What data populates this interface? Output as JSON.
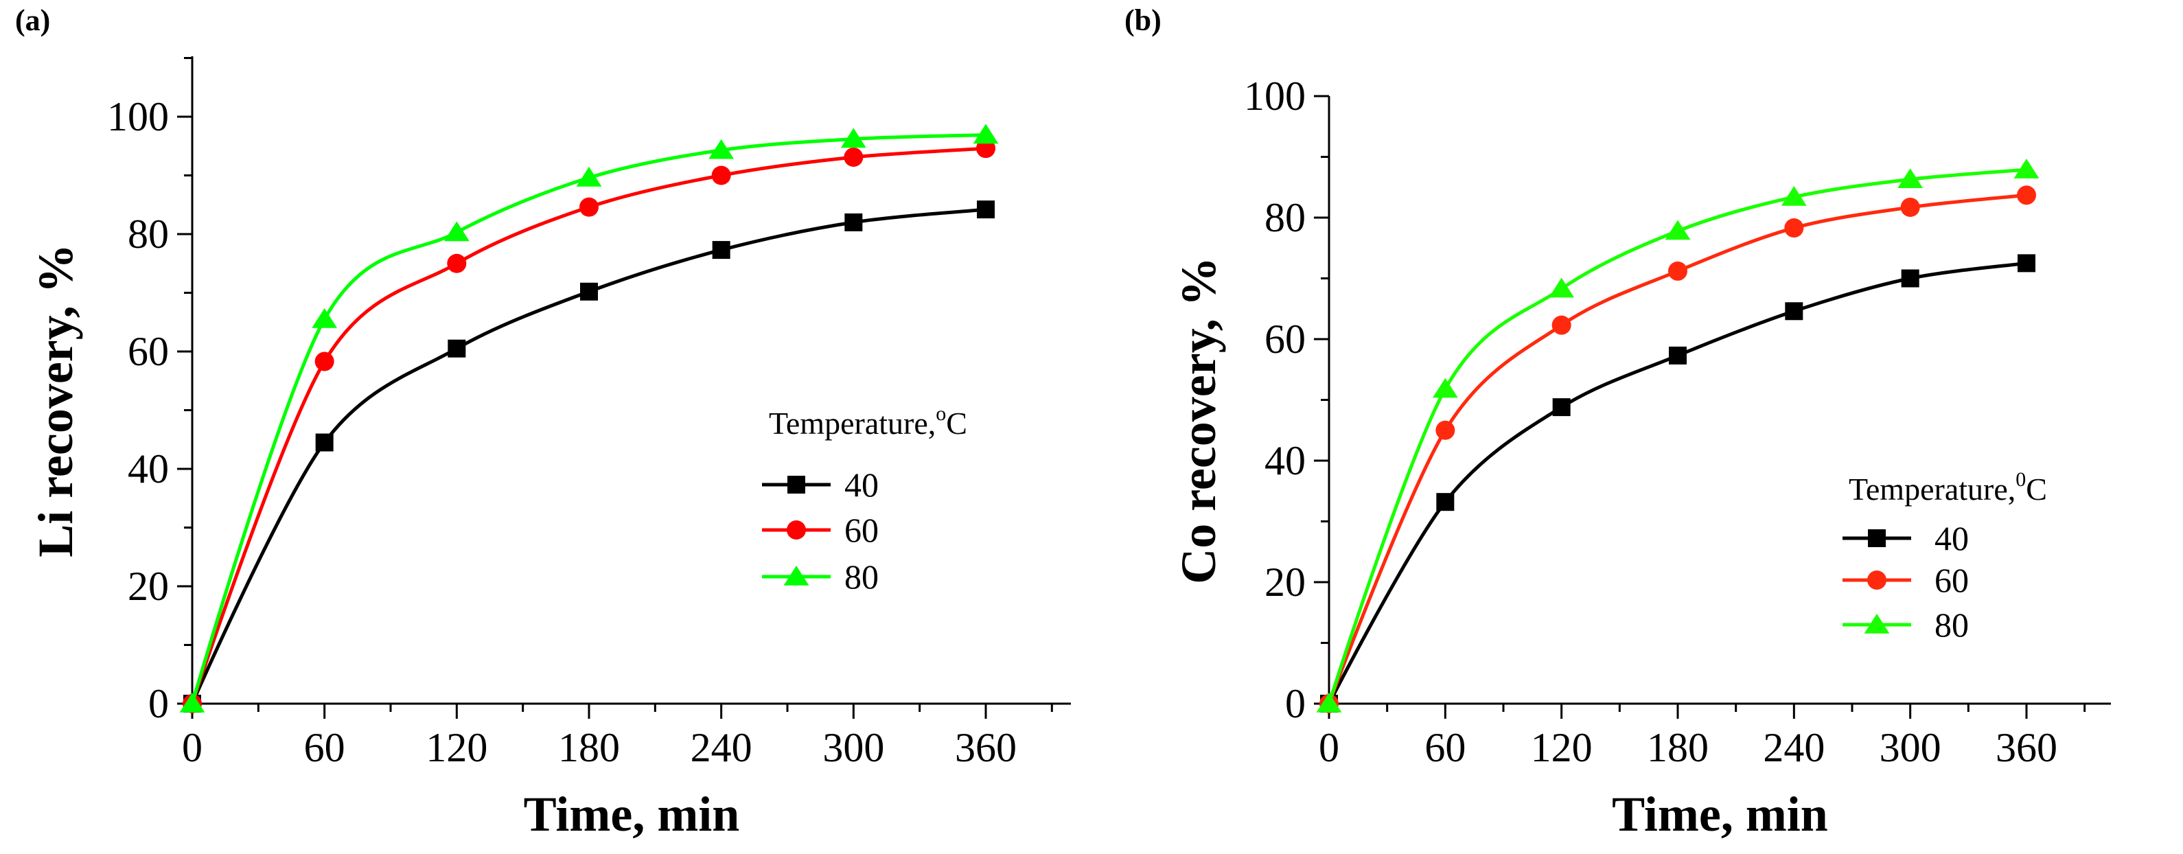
{
  "chart_data": [
    {
      "panel": "(a)",
      "type": "line",
      "xlabel": "Time, min",
      "ylabel": "Li recovery, %",
      "x": [
        0,
        60,
        120,
        180,
        240,
        300,
        360
      ],
      "xticks": [
        0,
        60,
        120,
        180,
        240,
        300,
        360
      ],
      "yticks": [
        0,
        20,
        40,
        60,
        80,
        100
      ],
      "xlim": [
        0,
        400
      ],
      "ylim": [
        0,
        110
      ],
      "grid": false,
      "legend": {
        "title": "Temperature,",
        "title_sup": "o",
        "title_unit": "C",
        "placement": "center-right"
      },
      "series": [
        {
          "name": "40",
          "marker": "square",
          "color": "#000000",
          "values": [
            0,
            44.5,
            60.5,
            70.2,
            77.3,
            82.0,
            84.2
          ]
        },
        {
          "name": "60",
          "marker": "circle",
          "color": "#ff0000",
          "values": [
            0,
            58.3,
            75.0,
            84.6,
            90.0,
            93.1,
            94.6
          ]
        },
        {
          "name": "80",
          "marker": "triangle",
          "color": "#00ff00",
          "values": [
            0,
            65.5,
            80.3,
            89.6,
            94.3,
            96.2,
            96.9
          ]
        }
      ]
    },
    {
      "panel": "(b)",
      "type": "line",
      "xlabel": "Time, min",
      "ylabel": "Co recovery, %",
      "x": [
        0,
        60,
        120,
        180,
        240,
        300,
        360
      ],
      "xticks": [
        0,
        60,
        120,
        180,
        240,
        300,
        360
      ],
      "yticks": [
        0,
        20,
        40,
        60,
        80,
        100
      ],
      "xlim": [
        0,
        400
      ],
      "ylim": [
        0,
        100
      ],
      "grid": false,
      "legend": {
        "title": "Temperature,",
        "title_sup": "0",
        "title_unit": "C",
        "placement": "bottom-right"
      },
      "series": [
        {
          "name": "40",
          "marker": "square",
          "color": "#000000",
          "values": [
            0,
            33.2,
            48.8,
            57.3,
            64.6,
            70.0,
            72.5
          ]
        },
        {
          "name": "60",
          "marker": "circle",
          "color": "#ff2a0e",
          "values": [
            0,
            45.0,
            62.3,
            71.2,
            78.3,
            81.7,
            83.7
          ]
        },
        {
          "name": "80",
          "marker": "triangle",
          "color": "#19ff00",
          "values": [
            0,
            51.8,
            68.3,
            77.8,
            83.4,
            86.3,
            87.9
          ]
        }
      ]
    }
  ]
}
